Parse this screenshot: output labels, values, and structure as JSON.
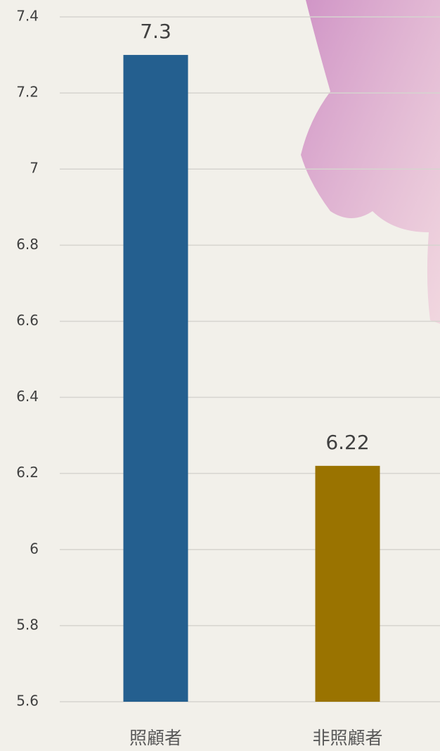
{
  "chart_data": {
    "type": "bar",
    "categories": [
      "照顧者",
      "非照顧者"
    ],
    "values": [
      7.3,
      6.22
    ],
    "colors": [
      "#245f8f",
      "#9a7300"
    ],
    "ylim": [
      5.6,
      7.4
    ],
    "yticks": [
      5.6,
      5.8,
      6,
      6.2,
      6.4,
      6.6,
      6.8,
      7,
      7.2,
      7.4
    ],
    "grid": true
  }
}
